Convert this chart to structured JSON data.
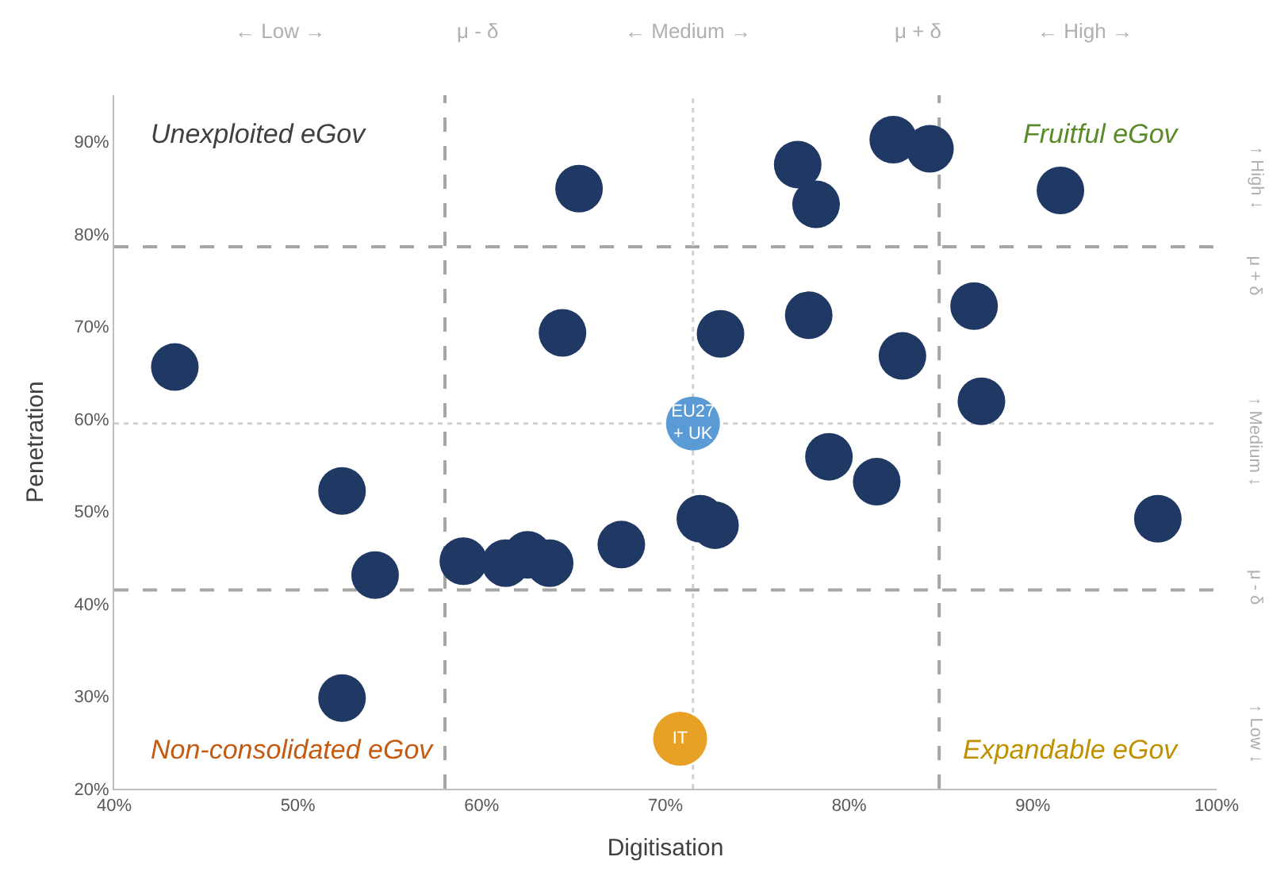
{
  "chart_data": {
    "type": "scatter",
    "xlabel": "Digitisation",
    "ylabel": "Penetration",
    "xlim": [
      40,
      100
    ],
    "ylim": [
      20,
      95
    ],
    "xticks": [
      {
        "value": 40,
        "label": "40%"
      },
      {
        "value": 50,
        "label": "50%"
      },
      {
        "value": 60,
        "label": "60%"
      },
      {
        "value": 70,
        "label": "70%"
      },
      {
        "value": 80,
        "label": "80%"
      },
      {
        "value": 90,
        "label": "90%"
      },
      {
        "value": 100,
        "label": "100%"
      }
    ],
    "yticks": [
      {
        "value": 20,
        "label": "20%"
      },
      {
        "value": 30,
        "label": "30%"
      },
      {
        "value": 40,
        "label": "40%"
      },
      {
        "value": 50,
        "label": "50%"
      },
      {
        "value": 60,
        "label": "60%"
      },
      {
        "value": 70,
        "label": "70%"
      },
      {
        "value": 80,
        "label": "80%"
      },
      {
        "value": 90,
        "label": "90%"
      }
    ],
    "grid": false,
    "marker": "circle",
    "series": [
      {
        "color": "#1f3864",
        "x": [
          43.3,
          65.3,
          64.4,
          77.2,
          78.2,
          82.4,
          84.4,
          91.5,
          73.0,
          77.8,
          82.9,
          86.8,
          87.2,
          78.9,
          81.5,
          71.9,
          72.7,
          96.8,
          52.4,
          54.2,
          52.4,
          59.0,
          61.3,
          62.5,
          63.7,
          67.6
        ],
        "values": [
          65.6,
          84.9,
          69.3,
          87.5,
          83.2,
          90.2,
          89.2,
          84.7,
          69.2,
          71.2,
          66.8,
          72.2,
          61.9,
          55.9,
          53.2,
          49.2,
          48.5,
          49.2,
          52.2,
          43.1,
          29.8,
          44.6,
          44.4,
          45.3,
          44.4,
          46.4
        ]
      },
      {
        "name": "EU27\n+ UK",
        "color": "#5b9bd5",
        "x": [
          71.5
        ],
        "values": [
          59.5
        ]
      },
      {
        "name": "IT",
        "color": "#e8a025",
        "x": [
          70.8
        ],
        "values": [
          25.4
        ]
      }
    ],
    "ref_lines": [
      {
        "axis": "x",
        "value": 58.0,
        "line_style": "dashed",
        "color": "#a6a6a6"
      },
      {
        "axis": "x",
        "value": 84.9,
        "line_style": "dashed",
        "color": "#a6a6a6"
      },
      {
        "axis": "y",
        "value": 78.6,
        "line_style": "dashed",
        "color": "#a6a6a6"
      },
      {
        "axis": "y",
        "value": 41.5,
        "line_style": "dashed",
        "color": "#a6a6a6"
      },
      {
        "axis": "x",
        "value": 71.5,
        "line_style": "dotted",
        "color": "#d0d0d0"
      },
      {
        "axis": "y",
        "value": 59.5,
        "line_style": "dotted",
        "color": "#d0d0d0"
      }
    ],
    "annotations": [
      "Unexploited eGov",
      "Fruitful eGov",
      "Non-consolidated eGov",
      "Expandable eGov",
      "← Low →",
      "μ - δ",
      "← Medium →",
      "μ + δ",
      "← High →",
      "↑ High ↓",
      "μ + δ",
      "↑ Medium ↓",
      "μ - δ",
      "↑ Low ↓"
    ]
  }
}
